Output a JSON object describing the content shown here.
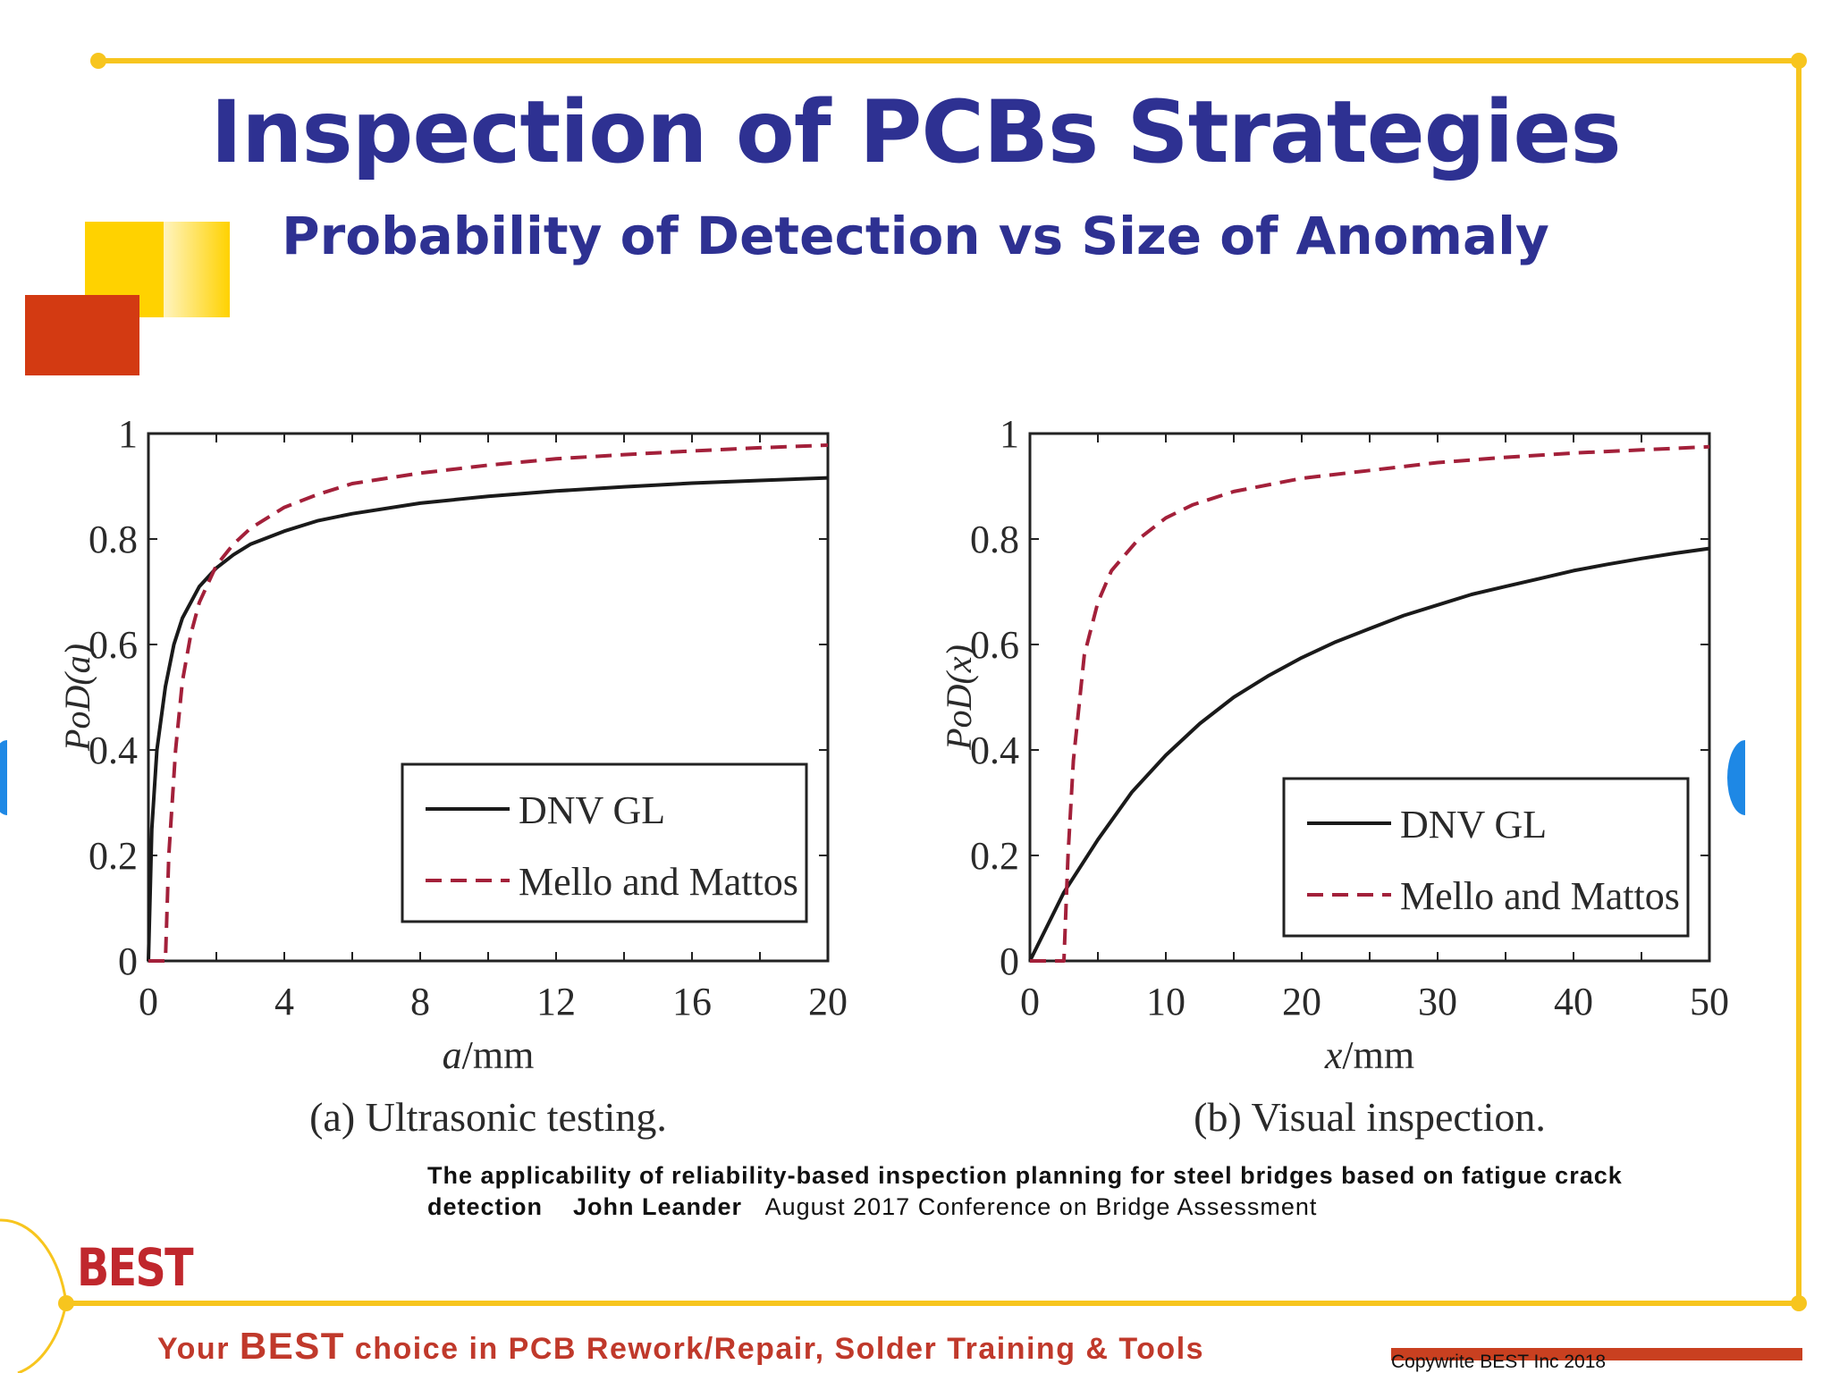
{
  "slide": {
    "title": "Inspection of PCBs Strategies",
    "subtitle": "Probability of Detection vs Size of Anomaly",
    "citation_title": "The applicability of reliability-based inspection planning for steel bridges based on fatigue crack detection",
    "citation_author": "John Leander",
    "citation_venue": "August 2017 Conference on Bridge Assessment",
    "logo": "BEST",
    "tagline_pre": "Your ",
    "tagline_brand": "BEST",
    "tagline_post": " choice in PCB Rework/Repair, Solder Training & Tools",
    "copyright": "Copywrite BEST Inc 2018"
  },
  "colors": {
    "accent_blue": "#2e3192",
    "frame_yellow": "#f7c51e",
    "brand_red": "#c0392b",
    "series_dnv": "#1a1a1a",
    "series_mello": "#a3203a"
  },
  "chart_data": [
    {
      "type": "line",
      "caption": "(a) Ultrasonic testing.",
      "xlabel_var": "a",
      "xlabel_unit": "/mm",
      "ylabel": "PoD(a)",
      "xlim": [
        0,
        20
      ],
      "ylim": [
        0,
        1
      ],
      "xticks": [
        0,
        4,
        8,
        12,
        16,
        20
      ],
      "yticks": [
        0,
        0.2,
        0.4,
        0.6,
        0.8,
        1
      ],
      "ytick_labels": [
        "0",
        "0.2",
        "0.4",
        "0.6",
        "0.8",
        "1"
      ],
      "legend_position": "bottom-right",
      "series": [
        {
          "name": "DNV GL",
          "style": "solid",
          "x": [
            0,
            0.1,
            0.25,
            0.5,
            0.75,
            1,
            1.5,
            2,
            2.5,
            3,
            4,
            5,
            6,
            8,
            10,
            12,
            14,
            16,
            18,
            20
          ],
          "y": [
            0,
            0.25,
            0.4,
            0.52,
            0.6,
            0.65,
            0.71,
            0.745,
            0.77,
            0.79,
            0.815,
            0.835,
            0.848,
            0.868,
            0.881,
            0.891,
            0.899,
            0.906,
            0.911,
            0.916
          ]
        },
        {
          "name": "Mello and Mattos",
          "style": "dashed",
          "x": [
            0,
            0.5,
            0.6,
            0.8,
            1,
            1.25,
            1.5,
            2,
            2.5,
            3,
            4,
            5,
            6,
            8,
            10,
            12,
            14,
            16,
            18,
            20
          ],
          "y": [
            0,
            0,
            0.2,
            0.4,
            0.53,
            0.62,
            0.68,
            0.75,
            0.79,
            0.82,
            0.86,
            0.885,
            0.905,
            0.925,
            0.94,
            0.952,
            0.96,
            0.967,
            0.973,
            0.978
          ]
        }
      ]
    },
    {
      "type": "line",
      "caption": "(b) Visual inspection.",
      "xlabel_var": "x",
      "xlabel_unit": "/mm",
      "ylabel": "PoD(x)",
      "xlim": [
        0,
        50
      ],
      "ylim": [
        0,
        1
      ],
      "xticks": [
        0,
        10,
        20,
        30,
        40,
        50
      ],
      "yticks": [
        0,
        0.2,
        0.4,
        0.6,
        0.8,
        1
      ],
      "ytick_labels": [
        "0",
        "0.2",
        "0.4",
        "0.6",
        "0.8",
        "1"
      ],
      "legend_position": "bottom-right",
      "series": [
        {
          "name": "DNV GL",
          "style": "solid",
          "x": [
            0,
            2.5,
            5,
            7.5,
            10,
            12.5,
            15,
            17.5,
            20,
            22.5,
            25,
            27.5,
            30,
            32.5,
            35,
            37.5,
            40,
            42.5,
            45,
            47.5,
            50
          ],
          "y": [
            0,
            0.13,
            0.23,
            0.32,
            0.39,
            0.45,
            0.5,
            0.54,
            0.575,
            0.605,
            0.63,
            0.655,
            0.675,
            0.695,
            0.71,
            0.725,
            0.74,
            0.752,
            0.763,
            0.773,
            0.782
          ]
        },
        {
          "name": "Mello and Mattos",
          "style": "dashed",
          "x": [
            0,
            2.5,
            2.8,
            3.2,
            4,
            5,
            6,
            8,
            10,
            12,
            15,
            20,
            25,
            30,
            35,
            40,
            45,
            50
          ],
          "y": [
            0,
            0,
            0.2,
            0.38,
            0.58,
            0.68,
            0.74,
            0.8,
            0.84,
            0.865,
            0.89,
            0.915,
            0.93,
            0.945,
            0.955,
            0.963,
            0.969,
            0.975
          ]
        }
      ]
    }
  ]
}
